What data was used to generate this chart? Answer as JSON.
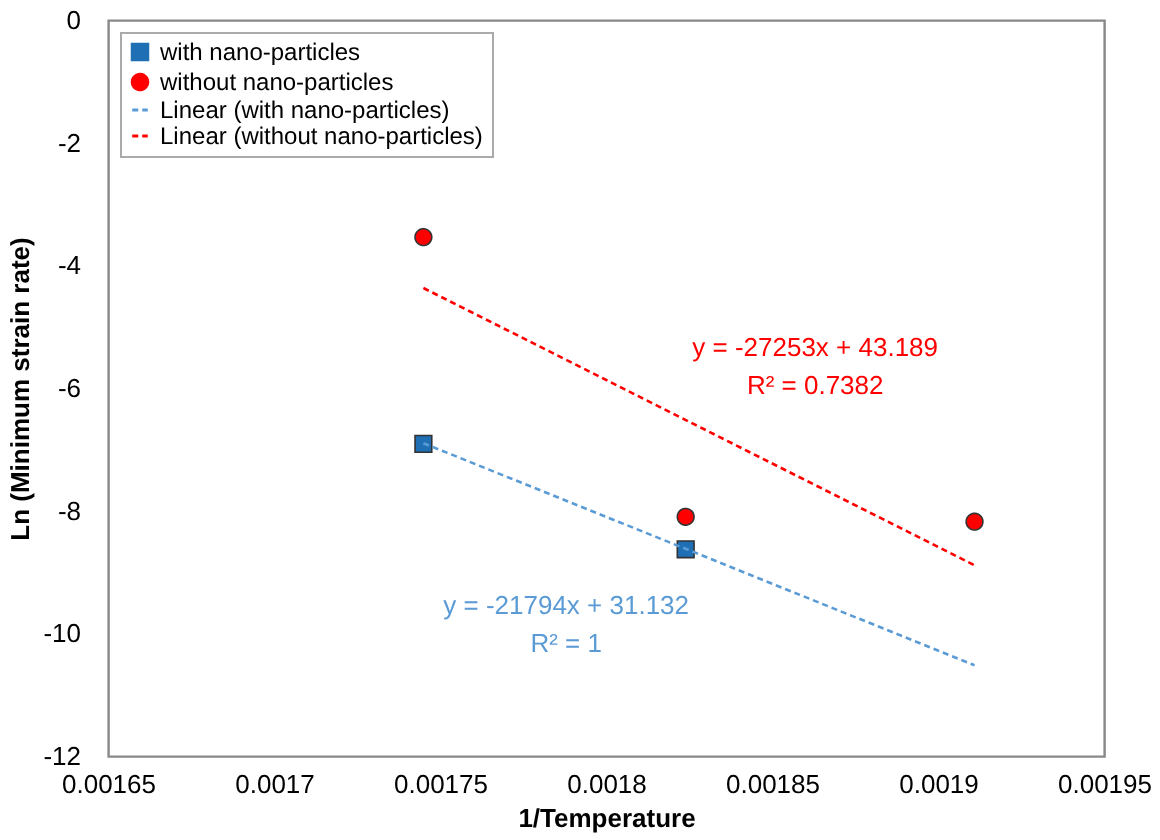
{
  "chart_data": {
    "type": "scatter",
    "xlabel": "1/Temperature",
    "ylabel": "Ln (Minimum strain rate)",
    "xlim": [
      0.00165,
      0.00195
    ],
    "xticks": [
      0.00165,
      0.0017,
      0.00175,
      0.0018,
      0.00185,
      0.0019,
      0.00195
    ],
    "ylim": [
      -12,
      0
    ],
    "yticks": [
      -12,
      -10,
      -8,
      -6,
      -4,
      -2,
      0
    ],
    "grid": false,
    "legend": "top left",
    "series": [
      {
        "name": "with nano-particles",
        "marker": "square",
        "color": "#1f6fb5",
        "x": [
          0.001745,
          0.001824
        ],
        "values": [
          -6.91,
          -8.63
        ]
      },
      {
        "name": "without nano-particles",
        "marker": "circle",
        "color": "#ff0000",
        "x": [
          0.001745,
          0.001824,
          0.001911
        ],
        "values": [
          -3.54,
          -8.1,
          -8.18
        ]
      },
      {
        "name": "Linear (with nano-particles)",
        "type": "line",
        "line_style": "dashed",
        "marker": "none",
        "color": "#5b9bd5",
        "x": [
          0.001745,
          0.001911
        ],
        "values": [
          -6.9,
          -10.52
        ]
      },
      {
        "name": "Linear (without nano-particles)",
        "type": "line",
        "line_style": "dashed",
        "marker": "none",
        "color": "#ff0000",
        "x": [
          0.001745,
          0.001911
        ],
        "values": [
          -4.37,
          -8.89
        ]
      }
    ],
    "annotations": [
      "y = -21794x + 31.132\nR² = 1",
      "y = -27253x + 43.189\nR² = 0.7382"
    ]
  }
}
